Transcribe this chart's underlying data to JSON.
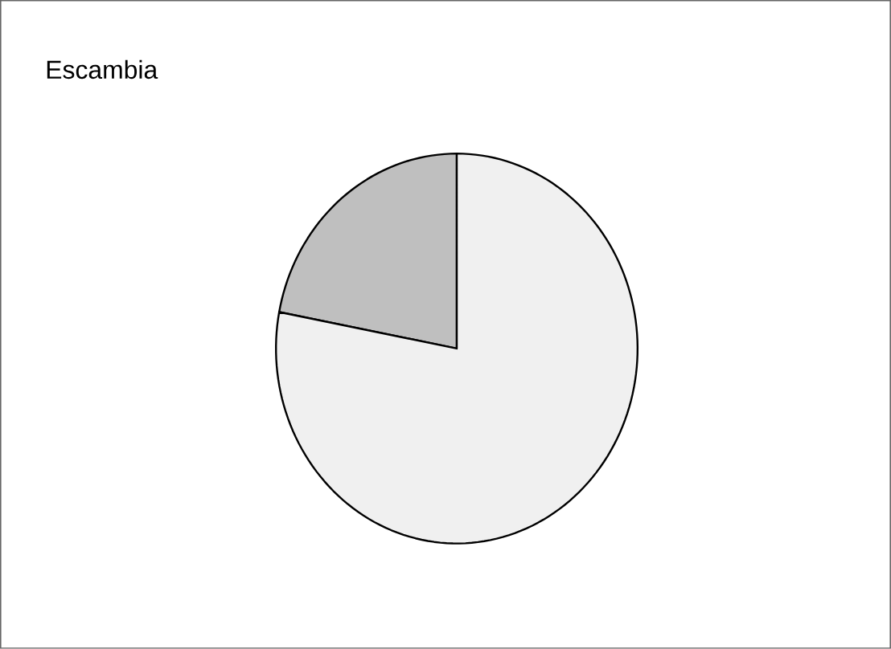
{
  "chart_data": {
    "type": "pie",
    "title": "Escambia",
    "categories": [
      null,
      null
    ],
    "values": [
      22,
      78
    ],
    "colors": [
      "#bfbfbf",
      "#f0f0f0"
    ]
  }
}
